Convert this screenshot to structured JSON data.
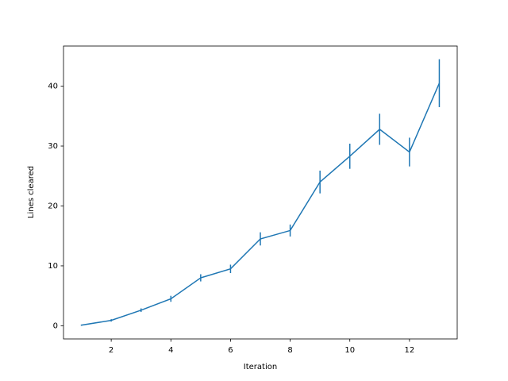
{
  "chart_data": {
    "type": "errorbar_line",
    "x_label": "Iteration",
    "y_label": "Lines cleared",
    "color": "#1f77b4",
    "x": [
      1,
      2,
      3,
      4,
      5,
      6,
      7,
      8,
      9,
      10,
      11,
      12,
      13
    ],
    "values": [
      0.1,
      0.9,
      2.6,
      4.5,
      8.0,
      9.5,
      14.5,
      15.9,
      24.0,
      28.3,
      32.8,
      29.0,
      40.5
    ],
    "errors": [
      0.1,
      0.2,
      0.3,
      0.5,
      0.6,
      0.7,
      1.1,
      1.0,
      1.9,
      2.1,
      2.6,
      2.4,
      4.0
    ],
    "xlim": [
      0.4,
      13.6
    ],
    "xticks": [
      2,
      4,
      6,
      8,
      10,
      12
    ],
    "ylim": [
      -2.2,
      46.7
    ],
    "yticks": [
      0,
      10,
      20,
      30,
      40
    ]
  }
}
